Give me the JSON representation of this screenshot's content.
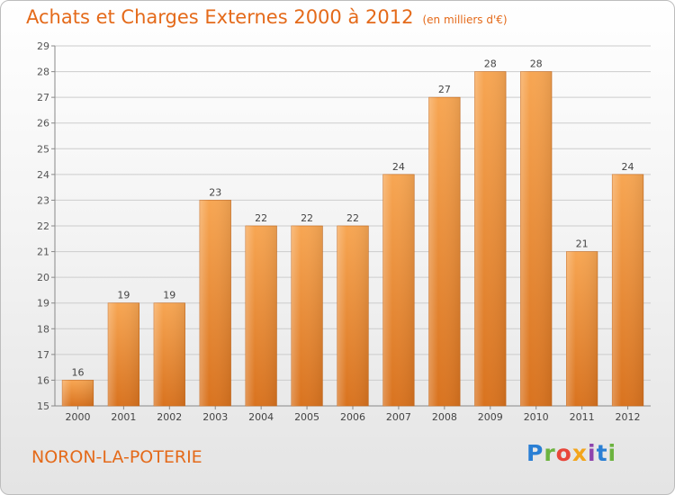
{
  "header": {
    "title": "Achats et Charges Externes 2000 à 2012",
    "unit": "(en milliers d'€)"
  },
  "commune": "NORON-LA-POTERIE",
  "logo_text": "Proxiti",
  "colors": {
    "title": "#e46a1a",
    "bar_top": "#f7a653",
    "bar_bottom": "#d9731f",
    "grid": "#cccccc"
  },
  "chart_data": {
    "type": "bar",
    "categories": [
      "2000",
      "2001",
      "2002",
      "2003",
      "2004",
      "2005",
      "2006",
      "2007",
      "2008",
      "2009",
      "2010",
      "2011",
      "2012"
    ],
    "values": [
      16,
      19,
      19,
      23,
      22,
      22,
      22,
      24,
      27,
      28,
      28,
      21,
      24
    ],
    "title": "Achats et Charges Externes 2000 à 2012",
    "xlabel": "",
    "ylabel": "",
    "ylim": [
      15,
      29
    ],
    "yticks": [
      15,
      16,
      17,
      18,
      19,
      20,
      21,
      22,
      23,
      24,
      25,
      26,
      27,
      28,
      29
    ],
    "grid": true,
    "data_labels": true
  }
}
